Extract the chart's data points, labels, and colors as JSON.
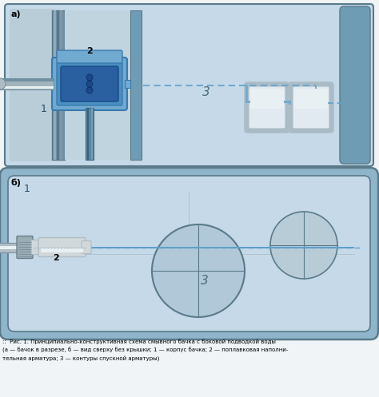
{
  "bg_color": "#f0f4f7",
  "caption_line1": "::  Рис. 1. Принципиально-конструктивная схема смывного бачка с боковой подводкой воды",
  "caption_line2": "(а — бачок в разрезе, б — вид сверху без крышки; 1 — корпус бачка; 2 — поплавковая наполни-",
  "caption_line3": "тельная арматура; 3 — контуры спускной арматуры)",
  "light_blue": "#c5d9e8",
  "mid_blue": "#8fb5ca",
  "dark_blue_area": "#6e9cb5",
  "tank_border": "#5a7a8a",
  "steel_light": "#d0d8dc",
  "steel_mid": "#b0bcc4",
  "steel_dark": "#8090a0",
  "valve_blue_light": "#70aad0",
  "valve_blue_dark": "#3a7ab0",
  "valve_body": "#4a8fc0",
  "dashed_color": "#60a0c8",
  "pipe_light": "#ccd8e0",
  "pipe_mid": "#a0b4bc",
  "pipe_dark": "#7090a0",
  "white_shine": "#e8f0f4",
  "btn_grad_light": "#e0eaf0",
  "btn_grad_dark": "#a8bcc8",
  "circle_fill": "#b8ccd8",
  "text_dark": "#2a4a6a",
  "label_a": "а)",
  "label_b": "б)",
  "n1": "1",
  "n2": "2",
  "n3": "3"
}
